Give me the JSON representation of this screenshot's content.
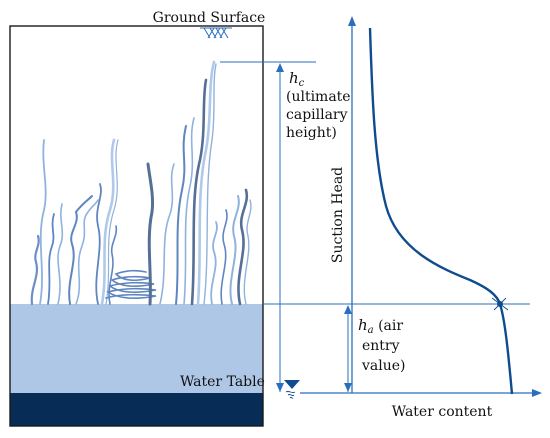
{
  "labels": {
    "ground_surface": "Ground Surface",
    "hc_symbol": "h",
    "hc_subscript": "c",
    "hc_desc_1": "(ultimate",
    "hc_desc_2": "capillary",
    "hc_desc_3": "height)",
    "ha_symbol": "h",
    "ha_subscript": "a",
    "ha_desc_1": " (air",
    "ha_desc_2": "entry",
    "ha_desc_3": "value)",
    "water_table": "Water Table",
    "suction_head": "Suction Head",
    "water_content": "Water content"
  },
  "colors": {
    "frame": "#1a1a1a",
    "saturated_zone": "#aec7e6",
    "bedrock": "#072c55",
    "axis": "#2a6fbd",
    "curve": "#0f4c8f",
    "root_light": "#8fb2de",
    "root_mid": "#5f86c0",
    "root_dark": "#566f96"
  },
  "icons": {
    "ground_surface_marker": "hatch-icon",
    "water_table_marker": "inverted-triangle-icon"
  }
}
